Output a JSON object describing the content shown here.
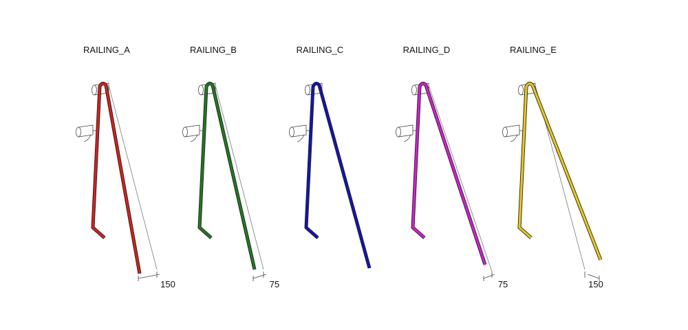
{
  "panels": [
    {
      "title": "RAILING_A",
      "dimension": 150
    },
    {
      "title": "RAILING_B",
      "dimension": 75
    },
    {
      "title": "RAILING_C"
    },
    {
      "title": "RAILING_D",
      "dimension": 75
    },
    {
      "title": "RAILING_E",
      "dimension": 150
    }
  ]
}
